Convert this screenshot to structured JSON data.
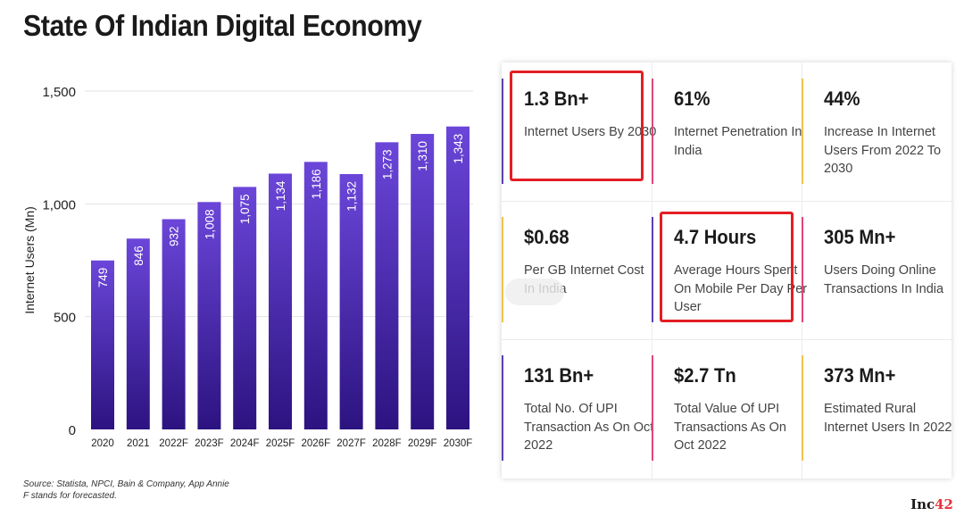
{
  "header": {
    "title": "State Of Indian Digital Economy"
  },
  "chart_data": {
    "type": "bar",
    "categories": [
      "2020",
      "2021",
      "2022F",
      "2023F",
      "2024F",
      "2025F",
      "2026F",
      "2027F",
      "2028F",
      "2029F",
      "2030F"
    ],
    "values": [
      749,
      846,
      932,
      1008,
      1075,
      1134,
      1186,
      1132,
      1273,
      1310,
      1343
    ],
    "value_labels": [
      "749",
      "846",
      "932",
      "1,008",
      "1,075",
      "1,134",
      "1,186",
      "1,132",
      "1,273",
      "1,310",
      "1,343"
    ],
    "ylabel": "Internet Users (Mn)",
    "xlabel": "",
    "ylim": [
      0,
      1500
    ],
    "yticks": [
      0,
      500,
      1000,
      1500
    ],
    "ytick_labels": [
      "0",
      "500",
      "1,000",
      "1,500"
    ],
    "grid": true,
    "colors": {
      "bar_top": "#6b46d9",
      "bar_bottom": "#2c1380"
    }
  },
  "footer": {
    "source_line1": "Source: Statista, NPCI, Bain & Company, App Annie",
    "source_line2": "F stands for forecasted.",
    "logo_text": "Inc",
    "logo_mark": "42"
  },
  "stats": [
    {
      "value": "1.3 Bn+",
      "desc": "Internet Users By 2030",
      "accent": "#5b3fb5",
      "highlighted": true
    },
    {
      "value": "61%",
      "desc": "Internet Penetration In India",
      "accent": "#e0457b",
      "highlighted": false
    },
    {
      "value": "44%",
      "desc": "Increase In Internet Users From 2022 To 2030",
      "accent": "#f2c14e",
      "highlighted": false
    },
    {
      "value": "$0.68",
      "desc": "Per GB Internet Cost In India",
      "accent": "#f2c14e",
      "highlighted": false
    },
    {
      "value": "4.7 Hours",
      "desc": "Average Hours Spent On Mobile Per Day Per User",
      "accent": "#5b3fb5",
      "highlighted": true
    },
    {
      "value": "305 Mn+",
      "desc": "Users Doing Online Transactions In India",
      "accent": "#e0457b",
      "highlighted": false
    },
    {
      "value": "131 Bn+",
      "desc": "Total No. Of UPI Transaction As On Oct 2022",
      "accent": "#5b3fb5",
      "highlighted": false
    },
    {
      "value": "$2.7 Tn",
      "desc": "Total Value Of UPI Transactions As On Oct 2022",
      "accent": "#e0457b",
      "highlighted": false
    },
    {
      "value": "373 Mn+",
      "desc": "Estimated Rural Internet Users In 2022",
      "accent": "#f2c14e",
      "highlighted": false
    }
  ]
}
